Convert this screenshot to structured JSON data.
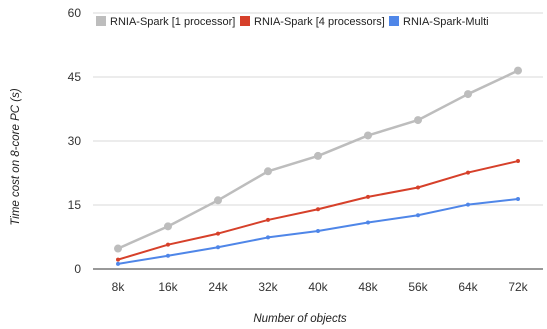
{
  "chart_data": {
    "type": "line",
    "xlabel": "Number of objects",
    "ylabel": "Time cost on 8-core PC (s)",
    "categories": [
      "8k",
      "16k",
      "24k",
      "32k",
      "40k",
      "48k",
      "56k",
      "64k",
      "72k"
    ],
    "ylim": [
      0,
      60
    ],
    "yticks": [
      "0",
      "15",
      "30",
      "45",
      "60"
    ],
    "grid": true,
    "legend_position": "top",
    "series": [
      {
        "name": "RNIA-Spark [1 processor]",
        "color": "#bdbdbd",
        "values": [
          4.8,
          10.0,
          16.1,
          22.9,
          26.5,
          31.3,
          34.9,
          41.0,
          46.5
        ]
      },
      {
        "name": "RNIA-Spark [4 processors]",
        "color": "#d6402a",
        "values": [
          2.2,
          5.7,
          8.3,
          11.5,
          14.0,
          16.9,
          19.1,
          22.6,
          25.3
        ]
      },
      {
        "name": "RNIA-Spark-Multi",
        "color": "#4f86e8",
        "values": [
          1.2,
          3.1,
          5.1,
          7.4,
          8.9,
          10.9,
          12.6,
          15.1,
          16.4
        ]
      }
    ]
  }
}
